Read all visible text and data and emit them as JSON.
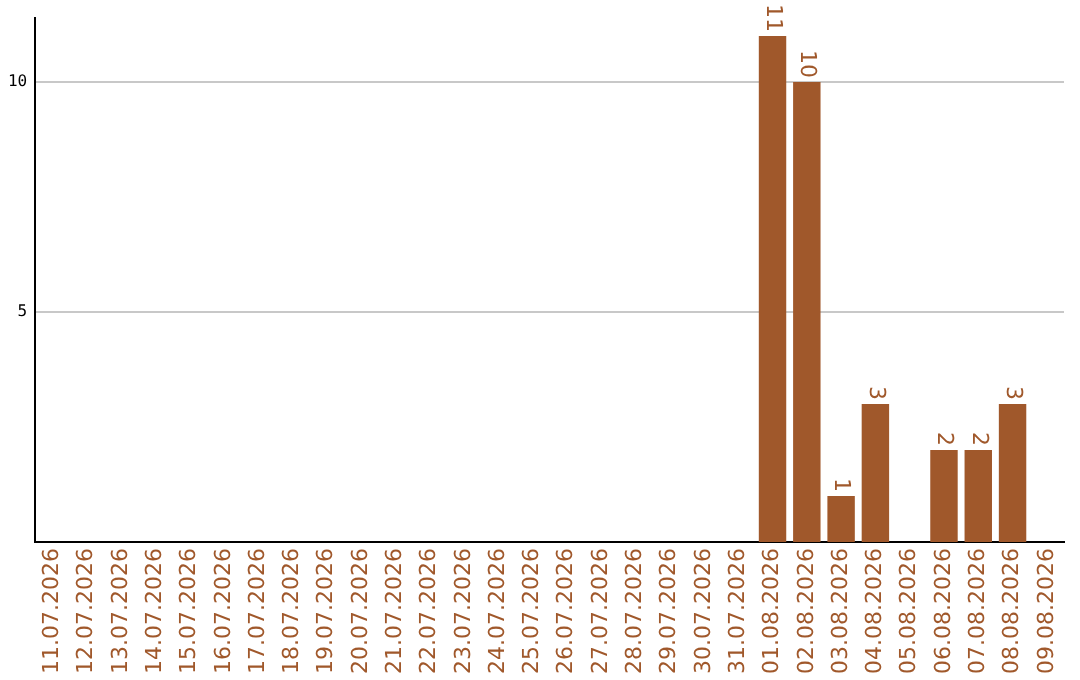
{
  "chart_data": {
    "type": "bar",
    "categories": [
      "11.07.2026",
      "12.07.2026",
      "13.07.2026",
      "14.07.2026",
      "15.07.2026",
      "16.07.2026",
      "17.07.2026",
      "18.07.2026",
      "19.07.2026",
      "20.07.2026",
      "21.07.2026",
      "22.07.2026",
      "23.07.2026",
      "24.07.2026",
      "25.07.2026",
      "26.07.2026",
      "27.07.2026",
      "28.07.2026",
      "29.07.2026",
      "30.07.2026",
      "31.07.2026",
      "01.08.2026",
      "02.08.2026",
      "03.08.2026",
      "04.08.2026",
      "05.08.2026",
      "06.08.2026",
      "07.08.2026",
      "08.08.2026",
      "09.08.2026"
    ],
    "values": [
      0,
      0,
      0,
      0,
      0,
      0,
      0,
      0,
      0,
      0,
      0,
      0,
      0,
      0,
      0,
      0,
      0,
      0,
      0,
      0,
      0,
      11,
      10,
      1,
      3,
      0,
      2,
      2,
      3,
      0
    ],
    "value_labels": [
      null,
      null,
      null,
      null,
      null,
      null,
      null,
      null,
      null,
      null,
      null,
      null,
      null,
      null,
      null,
      null,
      null,
      null,
      null,
      null,
      null,
      "11",
      "10",
      "1",
      "3",
      null,
      "2",
      "2",
      "3",
      null
    ],
    "color": "#a0582b",
    "ylim": [
      0,
      11.4
    ],
    "yticks": [
      5,
      10
    ],
    "grid": "y",
    "legend": false
  }
}
